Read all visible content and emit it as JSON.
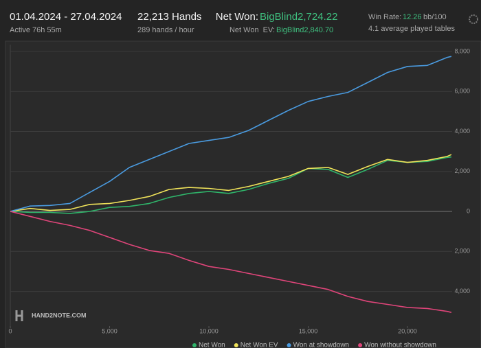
{
  "header": {
    "date_range": "01.04.2024 - 27.04.2024",
    "active": "Active 76h 55m",
    "hands": "22,213 Hands",
    "hands_per_hour": "289 hands / hour",
    "net_won_label": "Net Won:",
    "net_won_value": "BigBlind2,724.22",
    "ev_label": "Net Won  EV:",
    "ev_value": "BigBlind2,840.70",
    "win_rate_label": "Win Rate:",
    "win_rate_value": "12.26",
    "win_rate_unit": "bb/100",
    "tables": "4.1 average played tables"
  },
  "watermark": "HAND2NOTE.COM",
  "chart_data": {
    "type": "line",
    "grid": true,
    "x": [
      0,
      1000,
      2000,
      3000,
      4000,
      5000,
      6000,
      7000,
      8000,
      9000,
      10000,
      11000,
      12000,
      13000,
      14000,
      15000,
      16000,
      17000,
      18000,
      19000,
      20000,
      21000,
      22000,
      22213
    ],
    "series": [
      {
        "name": "Net Won",
        "color": "#2fb46a",
        "values": [
          0,
          -50,
          -50,
          -100,
          0,
          200,
          250,
          400,
          700,
          900,
          1000,
          900,
          1100,
          1400,
          1650,
          2150,
          2100,
          1700,
          2100,
          2550,
          2450,
          2500,
          2700,
          2724
        ]
      },
      {
        "name": "Net Won  EV",
        "color": "#f0e35a",
        "values": [
          0,
          150,
          50,
          100,
          350,
          400,
          550,
          750,
          1100,
          1200,
          1150,
          1050,
          1250,
          1500,
          1750,
          2150,
          2200,
          1850,
          2250,
          2600,
          2450,
          2550,
          2750,
          2841
        ]
      },
      {
        "name": "Won at showdown",
        "color": "#4a9be0",
        "values": [
          0,
          270,
          300,
          400,
          950,
          1500,
          2200,
          2600,
          3000,
          3400,
          3550,
          3700,
          4050,
          4550,
          5050,
          5500,
          5750,
          5950,
          6450,
          6950,
          7250,
          7300,
          7700,
          7750
        ]
      },
      {
        "name": "Won without showdown",
        "color": "#e0457a",
        "values": [
          0,
          -250,
          -500,
          -700,
          -950,
          -1300,
          -1650,
          -1950,
          -2100,
          -2450,
          -2750,
          -2900,
          -3100,
          -3300,
          -3500,
          -3700,
          -3900,
          -4250,
          -4500,
          -4650,
          -4800,
          -4850,
          -5000,
          -5050
        ]
      }
    ],
    "xlim": [
      0,
      22250
    ],
    "xticks": [
      0,
      {
        "value": 5000,
        "label": "5,000"
      },
      {
        "value": 10000,
        "label": "10,000"
      },
      {
        "value": 15000,
        "label": "15,000"
      },
      {
        "value": 20000,
        "label": "20,000"
      }
    ],
    "ylim": [
      -5730,
      8340
    ],
    "yticks": [
      {
        "value": -4000,
        "label": "4,000"
      },
      {
        "value": -2000,
        "label": "2,000"
      },
      0,
      {
        "value": 2000,
        "label": "2,000"
      },
      {
        "value": 4000,
        "label": "4,000"
      },
      {
        "value": 6000,
        "label": "6,000"
      },
      {
        "value": 8000,
        "label": "8,000"
      }
    ]
  }
}
